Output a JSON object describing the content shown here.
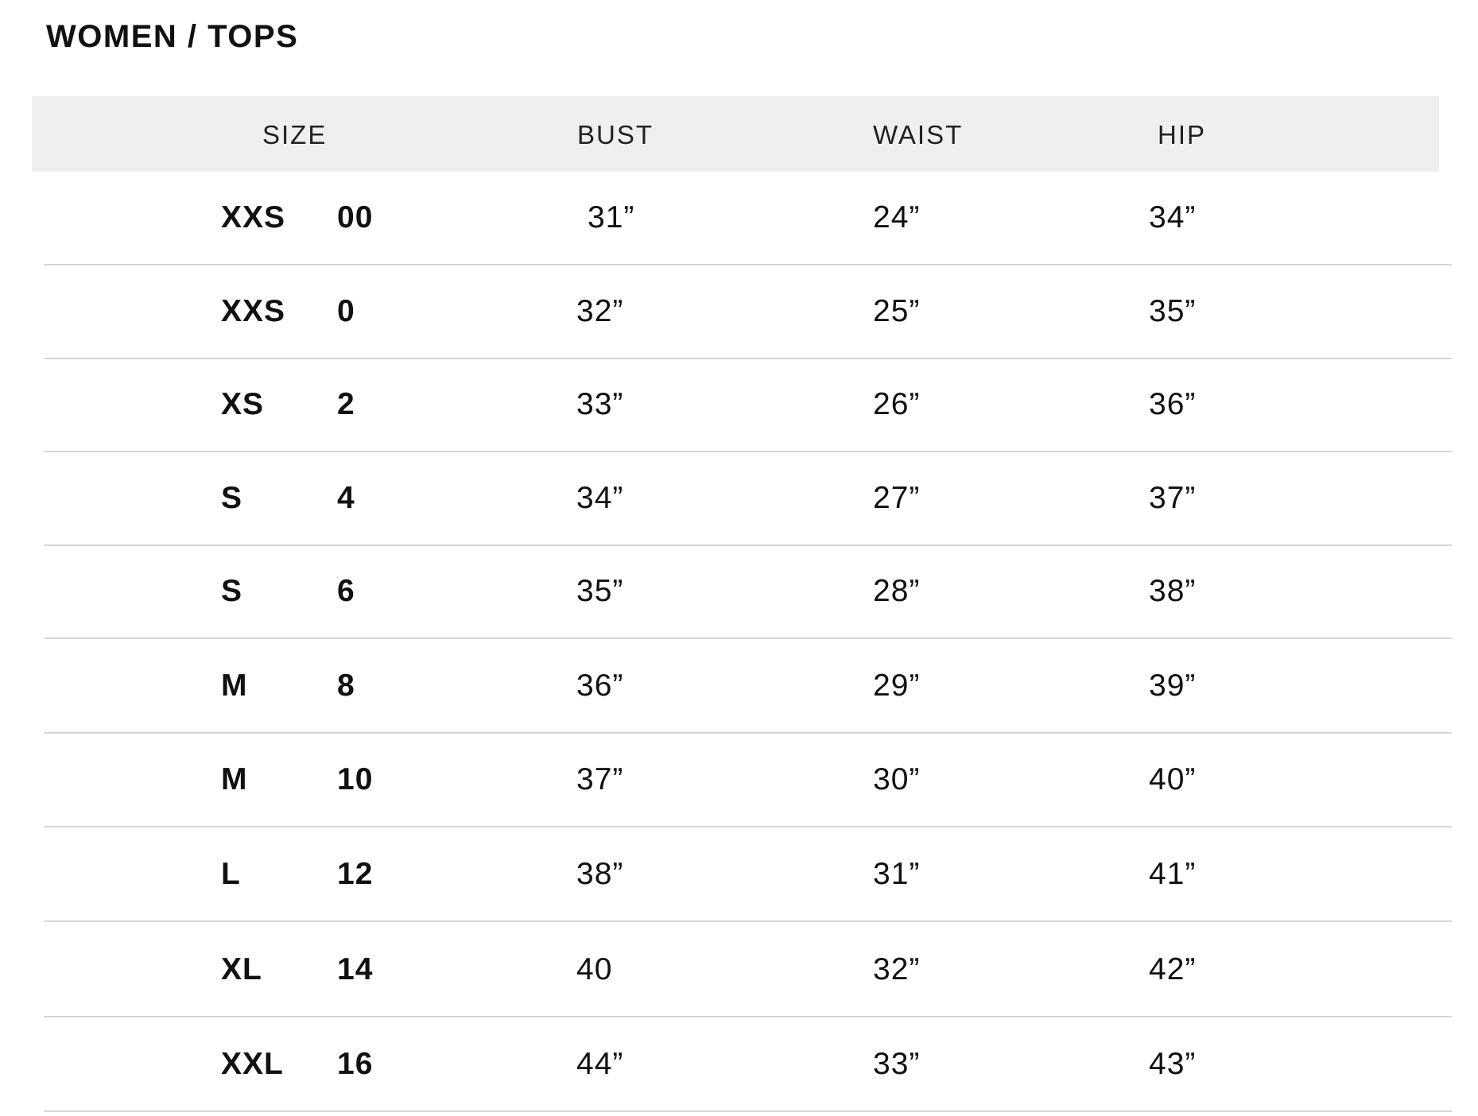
{
  "title": "WOMEN / TOPS",
  "headers": {
    "size": "SIZE",
    "bust": "BUST",
    "waist": "WAIST",
    "hip": "HIP"
  },
  "rows": [
    {
      "letter": "XXS",
      "number": "00",
      "bust": "31”",
      "waist": "24”",
      "hip": "34”"
    },
    {
      "letter": "XXS",
      "number": "0",
      "bust": "32”",
      "waist": "25”",
      "hip": "35”"
    },
    {
      "letter": "XS",
      "number": "2",
      "bust": "33”",
      "waist": "26”",
      "hip": "36”"
    },
    {
      "letter": "S",
      "number": "4",
      "bust": "34”",
      "waist": "27”",
      "hip": "37”"
    },
    {
      "letter": "S",
      "number": "6",
      "bust": "35”",
      "waist": "28”",
      "hip": "38”"
    },
    {
      "letter": "M",
      "number": "8",
      "bust": "36”",
      "waist": "29”",
      "hip": "39”"
    },
    {
      "letter": "M",
      "number": "10",
      "bust": "37”",
      "waist": "30”",
      "hip": "40”"
    },
    {
      "letter": "L",
      "number": "12",
      "bust": "38”",
      "waist": "31”",
      "hip": "41”"
    },
    {
      "letter": "XL",
      "number": "14",
      "bust": "40",
      "waist": "32”",
      "hip": "42”"
    },
    {
      "letter": "XXL",
      "number": "16",
      "bust": "44”",
      "waist": "33”",
      "hip": "43”"
    }
  ]
}
